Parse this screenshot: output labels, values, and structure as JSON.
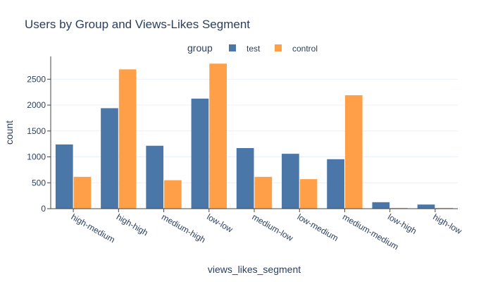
{
  "chart_data": {
    "type": "bar",
    "title": "Users by Group and Views-Likes Segment",
    "xlabel": "views_likes_segment",
    "ylabel": "count",
    "legend_title": "group",
    "legend_position": "top-center",
    "categories": [
      "high-medium",
      "high-high",
      "medium-high",
      "low-low",
      "medium-low",
      "low-medium",
      "medium-medium",
      "low-high",
      "high-low"
    ],
    "series": [
      {
        "name": "test",
        "color": "#4a76a8",
        "values": [
          1240,
          1940,
          1215,
          2125,
          1170,
          1060,
          955,
          125,
          80
        ]
      },
      {
        "name": "control",
        "color": "#ff9f47",
        "values": [
          615,
          2690,
          550,
          2800,
          615,
          570,
          2190,
          15,
          15
        ]
      }
    ],
    "ylim": [
      0,
      2940
    ],
    "yticks": [
      0,
      500,
      1000,
      1500,
      2000,
      2500
    ],
    "ytick_labels": [
      "0",
      "500",
      "1000",
      "1500",
      "2000",
      "2500"
    ],
    "grid": true
  }
}
